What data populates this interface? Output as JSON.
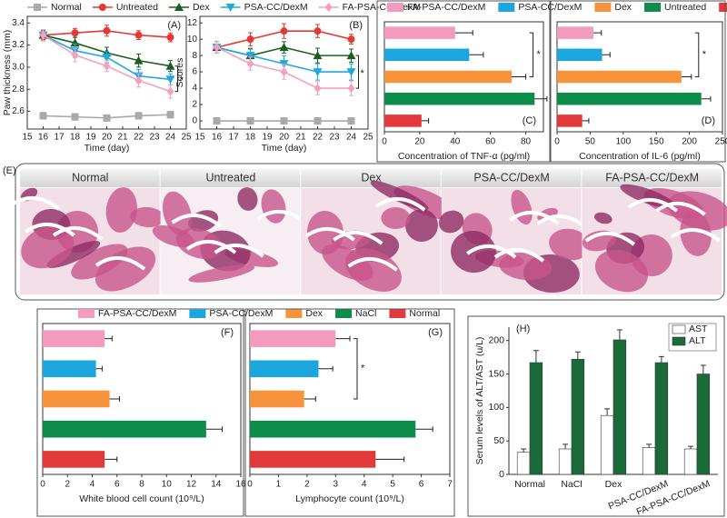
{
  "chart_data": [
    {
      "type": "line",
      "panel_label": "(A)",
      "xlabel": "Time (day)",
      "ylabel": "Paw thickness (mm)",
      "annotation": "*",
      "x": [
        16,
        18,
        20,
        22,
        24
      ],
      "xlim": [
        15,
        25
      ],
      "xticks": [
        15,
        16,
        17,
        18,
        19,
        20,
        21,
        22,
        23,
        24,
        25
      ],
      "ylim": [
        2.44,
        3.46
      ],
      "yticks": [
        2.6,
        2.8,
        {
          "value": 3,
          "label": "3.0"
        },
        3.2,
        3.4
      ],
      "series": [
        {
          "name": "Normal",
          "color": "#a9a9a9",
          "marker": "square",
          "values": [
            2.56,
            2.55,
            2.54,
            2.56,
            2.57
          ],
          "errors": [
            0.03,
            0.03,
            0.02,
            0.03,
            0.03
          ]
        },
        {
          "name": "Untreated",
          "color": "#e53935",
          "marker": "circle",
          "values": [
            3.29,
            3.31,
            3.33,
            3.29,
            3.27
          ],
          "errors": [
            0.04,
            0.04,
            0.05,
            0.04,
            0.04
          ]
        },
        {
          "name": "Dex",
          "color": "#1b5e20",
          "marker": "triangle-up",
          "values": [
            3.29,
            3.22,
            3.13,
            3.06,
            3.01
          ],
          "errors": [
            0.05,
            0.05,
            0.05,
            0.06,
            0.05
          ]
        },
        {
          "name": "PSA-CC/DexM",
          "color": "#1ea8e0",
          "marker": "triangle-down",
          "values": [
            3.29,
            3.15,
            3.09,
            2.92,
            2.89
          ],
          "errors": [
            0.05,
            0.06,
            0.05,
            0.06,
            0.05
          ]
        },
        {
          "name": "FA-PSA-CC/DexM",
          "color": "#f4a0c0",
          "marker": "diamond",
          "values": [
            3.29,
            3.11,
            3.01,
            2.88,
            2.78
          ],
          "errors": [
            0.05,
            0.06,
            0.05,
            0.06,
            0.06
          ]
        }
      ]
    },
    {
      "type": "line",
      "panel_label": "(B)",
      "xlabel": "Time (day)",
      "ylabel": "Scores",
      "annotation": "*",
      "x": [
        16,
        18,
        20,
        22,
        24
      ],
      "xlim": [
        15,
        25
      ],
      "xticks": [
        15,
        16,
        17,
        18,
        19,
        20,
        21,
        22,
        23,
        24,
        25
      ],
      "ylim": [
        -1,
        12.8
      ],
      "yticks": [
        0,
        2,
        4,
        6,
        8,
        10,
        12
      ],
      "series": [
        {
          "color": "#a9a9a9",
          "marker": "square",
          "values": [
            0,
            0,
            0,
            0,
            0
          ],
          "errors": [
            0.2,
            0.2,
            0.2,
            0.2,
            0.2
          ]
        },
        {
          "color": "#e53935",
          "marker": "circle",
          "values": [
            9,
            10,
            11,
            11,
            10
          ],
          "errors": [
            0.7,
            0.8,
            0.9,
            0.8,
            0.6
          ]
        },
        {
          "color": "#1b5e20",
          "marker": "triangle-up",
          "values": [
            9,
            8,
            9,
            8,
            8
          ],
          "errors": [
            0.7,
            0.8,
            0.7,
            0.9,
            0.8
          ]
        },
        {
          "color": "#1ea8e0",
          "marker": "triangle-down",
          "values": [
            9,
            8,
            7,
            6,
            6
          ],
          "errors": [
            0.7,
            0.9,
            1,
            1,
            1
          ]
        },
        {
          "color": "#f4a0c0",
          "marker": "diamond",
          "values": [
            9,
            7,
            6,
            4,
            4
          ],
          "errors": [
            0.7,
            0.8,
            0.9,
            0.8,
            0.9
          ]
        }
      ]
    },
    {
      "type": "hbar",
      "panel_label": "(C)",
      "xlabel": "Concentration of TNF-α (pg/ml)",
      "annotation": "*",
      "categories": [
        "FA-PSA-CC/DexM",
        "PSA-CC/DexM",
        "Dex",
        "Untreated",
        "Normal"
      ],
      "colors": [
        "#f29bbf",
        "#1ba7de",
        "#f7943b",
        "#0d8c4a",
        "#e23a3a"
      ],
      "values": [
        40,
        48,
        72,
        85,
        21
      ],
      "errors": [
        10,
        8,
        8,
        7,
        4
      ],
      "xlim": [
        0,
        90
      ],
      "xticks": [
        0,
        20,
        40,
        60,
        80
      ]
    },
    {
      "type": "hbar",
      "panel_label": "(D)",
      "xlabel": "Concentration of IL-6 (pg/ml)",
      "annotation": "*",
      "colors": [
        "#f29bbf",
        "#1ba7de",
        "#f7943b",
        "#0d8c4a",
        "#e23a3a"
      ],
      "values": [
        55,
        68,
        188,
        218,
        38
      ],
      "errors": [
        12,
        12,
        15,
        14,
        10
      ],
      "xlim": [
        0,
        250
      ],
      "xticks": [
        0,
        50,
        100,
        150,
        200,
        250
      ]
    },
    {
      "type": "hbar",
      "panel_label": "(F)",
      "xlabel": "White blood cell count (10⁹/L)",
      "categories": [
        "FA-PSA-CC/DexM",
        "PSA-CC/DexM",
        "Dex",
        "NaCl",
        "Normal"
      ],
      "colors": [
        "#f29bbf",
        "#1ba7de",
        "#f7943b",
        "#0d8c4a",
        "#e23a3a"
      ],
      "values": [
        5.0,
        4.3,
        5.4,
        13.2,
        5.0
      ],
      "errors": [
        0.6,
        0.5,
        0.8,
        1.3,
        1.0
      ],
      "xlim": [
        0,
        16
      ],
      "xticks": [
        0,
        2,
        4,
        6,
        8,
        10,
        12,
        14,
        16
      ]
    },
    {
      "type": "hbar",
      "panel_label": "(G)",
      "xlabel": "Lymphocyte count (10⁹/L)",
      "annotation": "*",
      "colors": [
        "#f29bbf",
        "#1ba7de",
        "#f7943b",
        "#0d8c4a",
        "#e23a3a"
      ],
      "values": [
        3.0,
        2.4,
        1.9,
        5.8,
        4.4
      ],
      "errors": [
        0.5,
        0.5,
        0.4,
        0.6,
        1.0
      ],
      "xlim": [
        0,
        7
      ],
      "xticks": [
        0,
        1,
        2,
        3,
        4,
        5,
        6,
        7
      ]
    },
    {
      "type": "bar",
      "panel_label": "(H)",
      "ylabel": "Serum levels of ALT/AST (u/L)",
      "categories": [
        "Normal",
        "NaCl",
        "Dex",
        "PSA-CC/DexM",
        "FA-PSA-CC/DexM"
      ],
      "ylim": [
        0,
        220
      ],
      "yticks": [
        0,
        50,
        100,
        150,
        200
      ],
      "series": [
        {
          "name": "AST",
          "color": "#ffffff",
          "values": [
            33,
            38,
            88,
            40,
            38
          ],
          "errors": [
            5,
            7,
            10,
            5,
            4
          ]
        },
        {
          "name": "ALT",
          "color": "#1b6b3a",
          "values": [
            167,
            172,
            201,
            167,
            150
          ],
          "errors": [
            18,
            11,
            15,
            9,
            13
          ]
        }
      ]
    }
  ],
  "panel_e": {
    "label": "(E)",
    "columns": [
      "Normal",
      "Untreated",
      "Dex",
      "PSA-CC/DexM",
      "FA-PSA-CC/DexM"
    ]
  }
}
